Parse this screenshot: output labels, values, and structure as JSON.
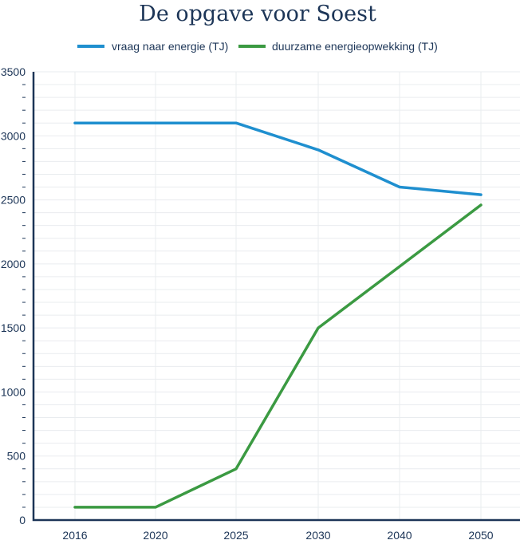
{
  "chart_data": {
    "type": "line",
    "title": "De opgave voor Soest",
    "categories": [
      "2016",
      "2020",
      "2025",
      "2030",
      "2040",
      "2050"
    ],
    "series": [
      {
        "name": "vraag naar energie  (TJ)",
        "color": "#1f8fcf",
        "values": [
          3100,
          3100,
          3100,
          2890,
          2600,
          2540
        ]
      },
      {
        "name": "duurzame energieopwekking (TJ)",
        "color": "#3b9a42",
        "values": [
          100,
          100,
          400,
          1500,
          1980,
          2460
        ]
      }
    ],
    "ylim": [
      0,
      3500
    ],
    "yticks": [
      "0",
      "500",
      "1000",
      "1500",
      "2000",
      "2500",
      "3000",
      "3500"
    ],
    "grid": true,
    "legend_position": "top-center"
  }
}
